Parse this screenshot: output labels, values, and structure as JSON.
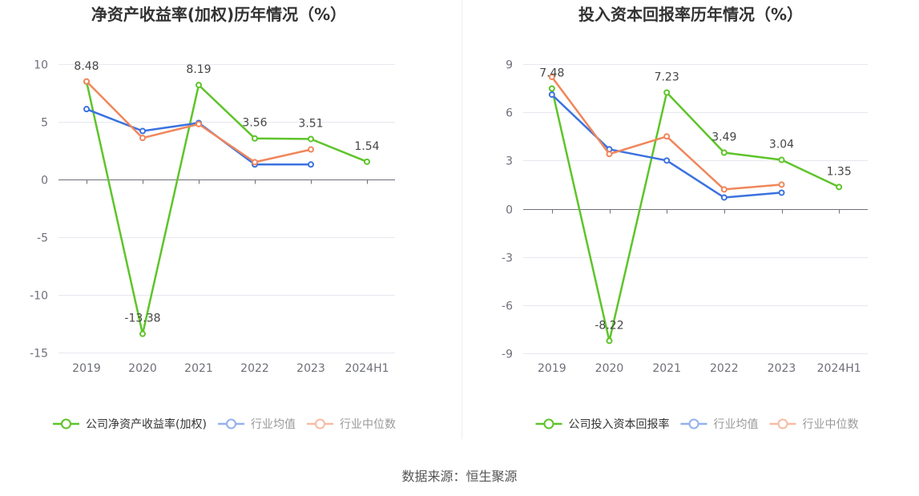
{
  "chart_data": [
    {
      "type": "line",
      "title": "净资产收益率(加权)历年情况（%）",
      "categories": [
        "2019",
        "2020",
        "2021",
        "2022",
        "2023",
        "2024H1"
      ],
      "ylim": [
        -15,
        10
      ],
      "yticks": [
        10,
        5,
        0,
        -5,
        -10,
        -15
      ],
      "grid": true,
      "legend_position": "bottom",
      "series": [
        {
          "name": "公司净资产收益率(加权)",
          "color": "#5ec42a",
          "data_labels": true,
          "values": [
            8.48,
            -13.38,
            8.19,
            3.56,
            3.51,
            1.54
          ]
        },
        {
          "name": "行业均值",
          "color": "#3b72df",
          "data_labels": false,
          "values": [
            6.1,
            4.2,
            4.9,
            1.3,
            1.3,
            null
          ]
        },
        {
          "name": "行业中位数",
          "color": "#f0865b",
          "data_labels": false,
          "values": [
            8.5,
            3.6,
            4.8,
            1.5,
            2.6,
            null
          ]
        }
      ]
    },
    {
      "type": "line",
      "title": "投入资本回报率历年情况（%）",
      "categories": [
        "2019",
        "2020",
        "2021",
        "2022",
        "2023",
        "2024H1"
      ],
      "ylim": [
        -9,
        9
      ],
      "yticks": [
        9,
        6,
        3,
        0,
        -3,
        -6,
        -9
      ],
      "grid": true,
      "legend_position": "bottom",
      "series": [
        {
          "name": "公司投入资本回报率",
          "color": "#5ec42a",
          "data_labels": true,
          "values": [
            7.48,
            -8.22,
            7.23,
            3.49,
            3.04,
            1.35
          ]
        },
        {
          "name": "行业均值",
          "color": "#3b72df",
          "data_labels": false,
          "values": [
            7.1,
            3.7,
            3.0,
            0.7,
            1.0,
            null
          ]
        },
        {
          "name": "行业中位数",
          "color": "#f0865b",
          "data_labels": false,
          "values": [
            8.2,
            3.4,
            4.5,
            1.2,
            1.5,
            null
          ]
        }
      ]
    }
  ],
  "source": "数据来源：恒生聚源"
}
